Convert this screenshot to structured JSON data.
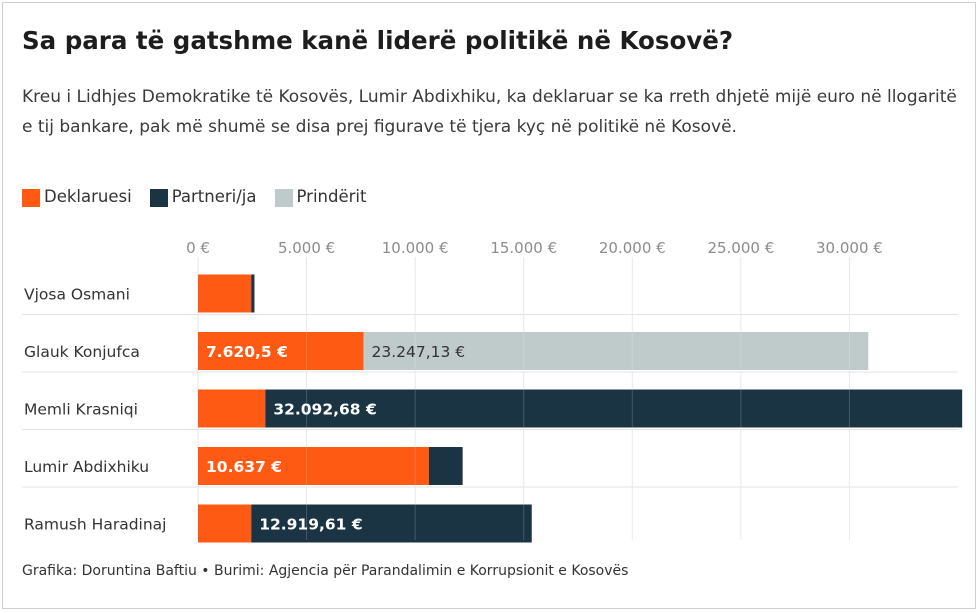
{
  "title": "Sa para të gatshme kanë liderë politikë në Kosovë?",
  "subtitle": "Kreu i Lidhjes Demokratike të Kosovës, Lumir Abdixhiku, ka deklaruar se ka rreth dhjetë mijë euro në llogaritë e tij bankare, pak më shumë se disa prej figurave të tjera kyç në politikë në Kosovë.",
  "legend": [
    {
      "label": "Deklaruesi",
      "color": "#ff5a14"
    },
    {
      "label": "Partneri/ja",
      "color": "#1b3444"
    },
    {
      "label": "Prindërit",
      "color": "#bfcbcb"
    }
  ],
  "footer": "Grafika: Doruntina Baftiu • Burimi: Agjencia për Parandalimin e Korrupsionit e Kosovës",
  "chart_data": {
    "type": "bar",
    "orientation": "horizontal",
    "stacked": true,
    "categories": [
      "Vjosa Osmani",
      "Glauk Konjufca",
      "Memli Krasniqi",
      "Lumir Abdixhiku",
      "Ramush Haradinaj"
    ],
    "series": [
      {
        "name": "Deklaruesi",
        "color": "#ff5a14",
        "values": [
          2450,
          7620.5,
          3100,
          10637,
          2450
        ]
      },
      {
        "name": "Partneri/ja",
        "color": "#1b3444",
        "values": [
          150,
          0,
          32092.68,
          1550,
          12919.61
        ]
      },
      {
        "name": "Prindërit",
        "color": "#bfcbcb",
        "values": [
          0,
          23247.13,
          0,
          0,
          0
        ]
      }
    ],
    "data_labels": [
      {
        "category": "Glauk Konjufca",
        "series": "Deklaruesi",
        "text": "7.620,5 €"
      },
      {
        "category": "Glauk Konjufca",
        "series": "Prindërit",
        "text": "23.247,13 €"
      },
      {
        "category": "Memli Krasniqi",
        "series": "Partneri/ja",
        "text": "32.092,68 €"
      },
      {
        "category": "Lumir Abdixhiku",
        "series": "Deklaruesi",
        "text": "10.637 €"
      },
      {
        "category": "Ramush Haradinaj",
        "series": "Partneri/ja",
        "text": "12.919,61 €"
      }
    ],
    "xticks": [
      0,
      5000,
      10000,
      15000,
      20000,
      25000,
      30000
    ],
    "xtick_labels": [
      "0 €",
      "5.000 €",
      "10.000 €",
      "15.000 €",
      "20.000 €",
      "25.000 €",
      "30.000 €"
    ],
    "xlim": [
      0,
      35000
    ],
    "axis_position": "top",
    "grid": true
  }
}
